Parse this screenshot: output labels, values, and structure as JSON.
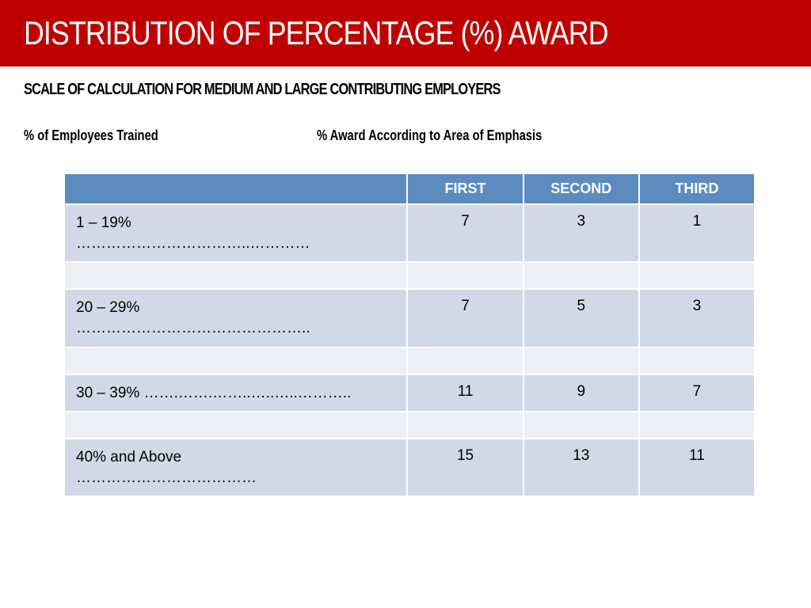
{
  "title": "DISTRIBUTION OF PERCENTAGE (%) AWARD",
  "subtitle": "SCALE OF CALCULATION FOR  MEDIUM AND LARGE  CONTRIBUTING EMPLOYERS",
  "col_header_left": "% of Employees Trained",
  "col_header_right": "% Award According to Area of Emphasis",
  "table": {
    "header_bg": "#5b8bbf",
    "header_fg": "#ffffff",
    "row_bg_data": "#d1d9e8",
    "row_bg_spacer": "#eceff6",
    "columns": [
      "FIRST",
      "SECOND",
      "THIRD"
    ],
    "rows": [
      {
        "label": "1 – 19%",
        "dots": "……………………………..…………",
        "first": "7",
        "second": "3",
        "third": "1"
      },
      {
        "label": "20 – 29%",
        "dots": "………………………………………..",
        "first": "7",
        "second": "5",
        "third": "3"
      },
      {
        "label": "30 – 39% …….…….……..…..…..………..",
        "dots": "",
        "first": "11",
        "second": "9",
        "third": "7"
      },
      {
        "label": "40% and Above",
        "dots": "………………………………",
        "first": "15",
        "second": "13",
        "third": "11"
      }
    ]
  },
  "colors": {
    "title_bar_bg": "#c00000",
    "title_fg": "#ffffff",
    "page_bg": "#ffffff"
  },
  "typography": {
    "title_fontsize_pt": 32,
    "subtitle_fontsize_pt": 15,
    "table_header_fontsize_pt": 14,
    "table_cell_fontsize_pt": 14
  }
}
